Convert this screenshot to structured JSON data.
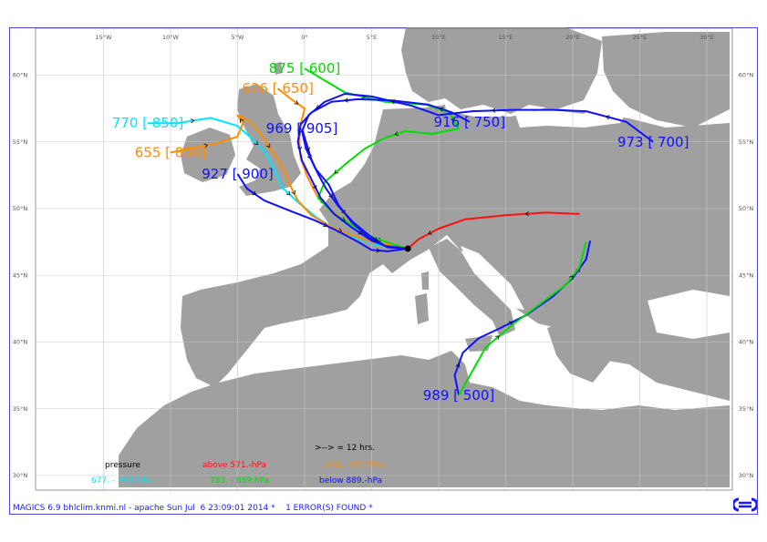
{
  "map": {
    "lon_labels": [
      "15°W",
      "10°W",
      "5°W",
      "0°",
      "5°E",
      "10°E",
      "15°E",
      "20°E",
      "25°E",
      "30°E"
    ],
    "lat_labels": [
      "60°N",
      "55°N",
      "50°N",
      "45°N",
      "40°N",
      "35°N",
      "30°N"
    ],
    "land_color": "#a0a0a0",
    "sea_color": "#ffffff",
    "grid_color": "#c8c8c8",
    "start_marker": {
      "lon": 7.7,
      "lat": 47.0
    }
  },
  "trajectories": [
    {
      "label": "770 [ 850]",
      "color": "#00e5ff",
      "points": [
        [
          -11.7,
          56.4
        ],
        [
          -9.5,
          56.4
        ],
        [
          -7.0,
          56.8
        ],
        [
          -5.0,
          56.2
        ],
        [
          -4.0,
          55.3
        ],
        [
          -3.0,
          54.3
        ],
        [
          -2.3,
          53.0
        ],
        [
          -1.7,
          51.6
        ],
        [
          -0.5,
          50.5
        ],
        [
          0.8,
          49.4
        ],
        [
          2.0,
          48.6
        ],
        [
          3.5,
          47.9
        ],
        [
          5.0,
          47.4
        ],
        [
          6.5,
          47.1
        ],
        [
          7.7,
          47.0
        ]
      ]
    },
    {
      "label": "655 [ 800]",
      "color": "#ff8c00",
      "points": [
        [
          -10.0,
          54.2
        ],
        [
          -8.0,
          54.6
        ],
        [
          -6.5,
          54.9
        ],
        [
          -5.0,
          55.4
        ],
        [
          -4.6,
          56.4
        ],
        [
          -5.0,
          57.0
        ],
        [
          -4.0,
          56.5
        ],
        [
          -3.0,
          55.2
        ],
        [
          -2.2,
          54.0
        ],
        [
          -1.5,
          52.8
        ],
        [
          -1.0,
          51.6
        ],
        [
          -0.5,
          50.6
        ],
        [
          0.5,
          49.5
        ],
        [
          2.0,
          48.6
        ],
        [
          3.5,
          48.0
        ],
        [
          5.0,
          47.5
        ],
        [
          7.7,
          47.0
        ]
      ]
    },
    {
      "label": "626 [ 650]",
      "color": "#ff8c00",
      "points": [
        [
          -2.0,
          59.0
        ],
        [
          -1.0,
          58.2
        ],
        [
          0.0,
          57.5
        ],
        [
          -0.3,
          56.3
        ],
        [
          -0.4,
          55.0
        ],
        [
          -0.3,
          53.8
        ],
        [
          0.2,
          52.4
        ],
        [
          0.9,
          51.0
        ],
        [
          2.0,
          49.8
        ],
        [
          3.5,
          48.8
        ],
        [
          5.0,
          47.9
        ],
        [
          6.4,
          47.3
        ],
        [
          7.7,
          47.0
        ]
      ]
    },
    {
      "label": "875 [ 600]",
      "color": "#00dd00",
      "points": [
        [
          0.0,
          60.5
        ],
        [
          3.0,
          58.7
        ],
        [
          6.0,
          58.0
        ],
        [
          9.0,
          57.8
        ],
        [
          10.8,
          57.2
        ],
        [
          11.5,
          56.0
        ],
        [
          9.5,
          55.6
        ],
        [
          7.5,
          55.8
        ],
        [
          6.0,
          55.3
        ],
        [
          4.5,
          54.5
        ],
        [
          3.0,
          53.3
        ],
        [
          1.5,
          52.0
        ],
        [
          1.0,
          50.8
        ],
        [
          2.2,
          49.6
        ],
        [
          3.8,
          48.6
        ],
        [
          5.2,
          47.8
        ],
        [
          6.7,
          47.3
        ],
        [
          7.7,
          47.0
        ]
      ]
    },
    {
      "label": "916 [ 750]",
      "color": "#1010ff",
      "points": [
        [
          12.3,
          56.5
        ],
        [
          11.0,
          57.2
        ],
        [
          9.2,
          57.8
        ],
        [
          6.5,
          58.1
        ],
        [
          4.0,
          58.2
        ],
        [
          2.0,
          58.0
        ],
        [
          0.5,
          57.2
        ],
        [
          -0.3,
          56.3
        ],
        [
          -0.5,
          55.0
        ],
        [
          -0.2,
          53.6
        ],
        [
          0.5,
          52.2
        ],
        [
          1.2,
          50.8
        ],
        [
          2.2,
          49.6
        ],
        [
          3.5,
          48.6
        ],
        [
          5.0,
          47.6
        ],
        [
          6.3,
          47.1
        ],
        [
          7.7,
          47.0
        ]
      ]
    },
    {
      "label": "973 [ 700]",
      "color": "#1010ff",
      "points": [
        [
          26.0,
          55.0
        ],
        [
          24.0,
          56.5
        ],
        [
          21.0,
          57.3
        ],
        [
          18.5,
          57.4
        ],
        [
          15.5,
          57.4
        ],
        [
          12.5,
          57.3
        ],
        [
          10.0,
          57.0
        ],
        [
          8.0,
          57.7
        ],
        [
          5.0,
          58.4
        ],
        [
          3.0,
          58.6
        ],
        [
          1.5,
          58.0
        ],
        [
          0.3,
          57.0
        ],
        [
          -0.2,
          55.8
        ],
        [
          0.1,
          54.5
        ],
        [
          0.8,
          53.0
        ],
        [
          1.8,
          51.8
        ],
        [
          2.5,
          50.3
        ],
        [
          3.5,
          49.0
        ],
        [
          4.8,
          47.8
        ],
        [
          6.2,
          47.1
        ],
        [
          7.7,
          47.0
        ]
      ]
    },
    {
      "label": "927 [ 900]",
      "color": "#1010ff",
      "points": [
        [
          -5.0,
          52.6
        ],
        [
          -4.3,
          51.5
        ],
        [
          -3.0,
          50.6
        ],
        [
          -1.0,
          49.8
        ],
        [
          0.8,
          49.1
        ],
        [
          2.5,
          48.3
        ],
        [
          4.0,
          47.5
        ],
        [
          5.0,
          46.9
        ],
        [
          6.2,
          46.8
        ],
        [
          7.7,
          47.0
        ]
      ]
    },
    {
      "label": "969 [ 905]",
      "color": "#1010ff",
      "points": [
        [
          -0.2,
          56.0
        ],
        [
          0.1,
          55.0
        ],
        [
          0.5,
          53.7
        ],
        [
          1.0,
          52.6
        ],
        [
          1.6,
          51.5
        ],
        [
          2.5,
          50.2
        ],
        [
          3.6,
          49.0
        ],
        [
          4.8,
          48.0
        ],
        [
          6.0,
          47.2
        ],
        [
          7.7,
          47.0
        ]
      ]
    },
    {
      "label": "989 [ 500]",
      "color": "#1010ff",
      "points": [
        [
          11.5,
          36.0
        ],
        [
          11.2,
          37.5
        ],
        [
          11.8,
          39.2
        ],
        [
          13.0,
          40.3
        ],
        [
          14.5,
          41.0
        ],
        [
          16.5,
          42.0
        ],
        [
          18.5,
          43.4
        ],
        [
          20.0,
          44.8
        ],
        [
          21.0,
          46.2
        ],
        [
          21.3,
          47.6
        ]
      ]
    },
    {
      "label": "",
      "color": "#00dd00",
      "points": [
        [
          11.5,
          36.0
        ],
        [
          13.5,
          39.6
        ],
        [
          15.5,
          41.3
        ],
        [
          17.5,
          42.8
        ],
        [
          19.5,
          44.3
        ],
        [
          20.5,
          45.6
        ],
        [
          21.0,
          47.5
        ]
      ]
    },
    {
      "label": "",
      "color": "#ff1010",
      "points": [
        [
          20.5,
          49.6
        ],
        [
          18.0,
          49.7
        ],
        [
          15.0,
          49.5
        ],
        [
          12.0,
          49.2
        ],
        [
          10.0,
          48.5
        ],
        [
          8.5,
          47.7
        ],
        [
          7.7,
          47.0
        ]
      ]
    }
  ],
  "legend": {
    "arrow_note": ">--> = 12 hrs.",
    "pressure_label": "pressure",
    "above_label": "above   571.-hPa",
    "range1_label": "571. -   677.hPa",
    "range2_label": "677. -    783.hPa",
    "range3_label": "783. -   889.hPa",
    "below_label": "below   889.-hPa",
    "colors": {
      "above": "#ff1010",
      "range1": "#ff8c00",
      "range2": "#00e5ff",
      "range3": "#00dd00",
      "below": "#1010ff"
    }
  },
  "footer": {
    "text": "MAGICS 6.9 bhlclim.knmi.nl - apache Sun Jul  6 23:09:01 2014 *    1 ERROR(S) FOUND *"
  },
  "logo_color": "#1a1aff"
}
